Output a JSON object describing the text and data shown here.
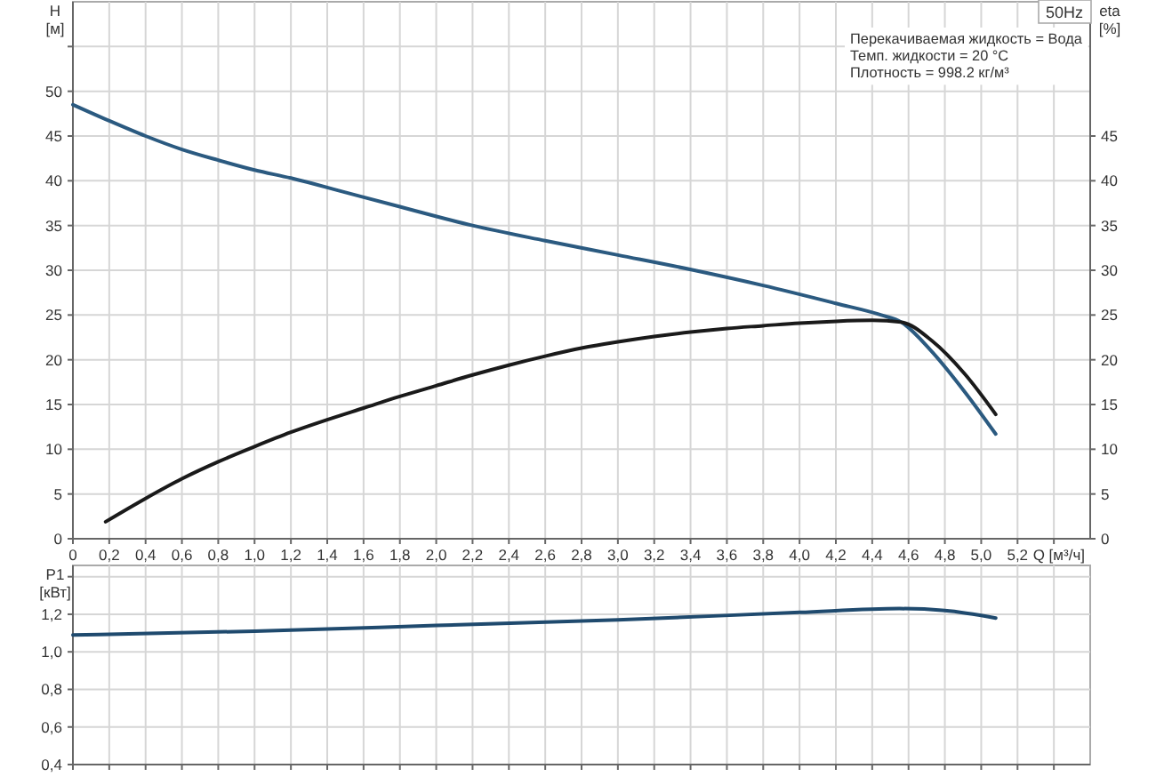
{
  "chart_data": [
    {
      "type": "line",
      "xlabel": "Q [м³/ч]",
      "ylabel": "H [м]",
      "y2label": "eta [%]",
      "xlim": [
        0,
        5.6
      ],
      "xticks": [
        0,
        {
          "value": 0.2,
          "label": "0,2"
        },
        {
          "value": 0.4,
          "label": "0,4"
        },
        {
          "value": 0.6,
          "label": "0,6"
        },
        {
          "value": 0.8,
          "label": "0,8"
        },
        {
          "value": 1.0,
          "label": "1,0"
        },
        {
          "value": 1.2,
          "label": "1,2"
        },
        {
          "value": 1.4,
          "label": "1,4"
        },
        {
          "value": 1.6,
          "label": "1,6"
        },
        {
          "value": 1.8,
          "label": "1,8"
        },
        {
          "value": 2.0,
          "label": "2,0"
        },
        {
          "value": 2.2,
          "label": "2,2"
        },
        {
          "value": 2.4,
          "label": "2,4"
        },
        {
          "value": 2.6,
          "label": "2,6"
        },
        {
          "value": 2.8,
          "label": "2,8"
        },
        {
          "value": 3.0,
          "label": "3,0"
        },
        {
          "value": 3.2,
          "label": "3,2"
        },
        {
          "value": 3.4,
          "label": "3,4"
        },
        {
          "value": 3.6,
          "label": "3,6"
        },
        {
          "value": 3.8,
          "label": "3,8"
        },
        {
          "value": 4.0,
          "label": "4,0"
        },
        {
          "value": 4.2,
          "label": "4,2"
        },
        {
          "value": 4.4,
          "label": "4,4"
        },
        {
          "value": 4.6,
          "label": "4,6"
        },
        {
          "value": 4.8,
          "label": "4,8"
        },
        {
          "value": 5.0,
          "label": "5,0"
        },
        {
          "value": 5.2,
          "label": "5,2"
        },
        {
          "value": 5.4,
          "label": null
        }
      ],
      "ylim": [
        0,
        60
      ],
      "yticks": [
        0,
        5,
        10,
        15,
        20,
        25,
        30,
        35,
        40,
        45,
        50,
        {
          "value": 55,
          "label": null
        }
      ],
      "y2lim": [
        0,
        60
      ],
      "y2ticks": [
        0,
        5,
        10,
        15,
        20,
        25,
        30,
        35,
        40,
        45
      ],
      "grid": true,
      "annotations": [
        "50Hz",
        "Перекачиваемая жидкость = Вода",
        "Темп. жидкости = 20 °C",
        "Плотность = 998.2 кг/м³"
      ],
      "series": [
        {
          "color": "#2b5a80",
          "x": [
            0,
            0.2,
            0.4,
            0.6,
            0.8,
            1.0,
            1.2,
            1.5,
            1.8,
            2.2,
            2.6,
            3.0,
            3.42,
            3.8,
            4.2,
            4.45,
            4.56,
            4.72,
            4.91,
            5.08
          ],
          "values": [
            48.5,
            46.7,
            45.0,
            43.5,
            42.3,
            41.2,
            40.3,
            38.7,
            37.1,
            35.0,
            33.3,
            31.7,
            30.0,
            28.3,
            26.3,
            25.0,
            24.2,
            21.1,
            16.4,
            11.7
          ]
        },
        {
          "color": "#1a1a1a",
          "x": [
            0.18,
            0.4,
            0.6,
            0.8,
            1.0,
            1.2,
            1.4,
            1.6,
            1.8,
            2.0,
            2.2,
            2.4,
            2.6,
            2.8,
            3.0,
            3.2,
            3.4,
            3.6,
            3.8,
            4.0,
            4.2,
            4.4,
            4.56,
            4.73,
            4.91,
            5.08
          ],
          "values": [
            1.9,
            4.5,
            6.7,
            8.6,
            10.3,
            11.9,
            13.3,
            14.6,
            15.9,
            17.1,
            18.3,
            19.4,
            20.4,
            21.3,
            22.0,
            22.6,
            23.1,
            23.5,
            23.8,
            24.1,
            24.3,
            24.4,
            24.2,
            22.1,
            18.4,
            13.9
          ]
        }
      ]
    },
    {
      "type": "line",
      "ylabel": "P1 [кВт]",
      "xlim": [
        0,
        5.6
      ],
      "xticks": [
        0,
        0.2,
        0.4,
        0.6,
        0.8,
        1.0,
        1.2,
        1.4,
        1.6,
        1.8,
        2.0,
        2.2,
        2.4,
        2.6,
        2.8,
        3.0,
        3.2,
        3.4,
        3.6,
        3.8,
        4.0,
        4.2,
        4.4,
        4.6,
        4.8,
        5.0,
        5.2,
        5.4
      ],
      "ylim": [
        0.4,
        1.46
      ],
      "yticks": [
        {
          "value": 0.4,
          "label": "0,4"
        },
        {
          "value": 0.6,
          "label": "0,6"
        },
        {
          "value": 0.8,
          "label": "0,8"
        },
        {
          "value": 1.0,
          "label": "1,0"
        },
        {
          "value": 1.2,
          "label": "1,2"
        },
        {
          "value": 1.4,
          "label": null
        }
      ],
      "tick_labels": "y",
      "grid": true,
      "series": [
        {
          "color": "#1f4a6e",
          "x": [
            0,
            1.0,
            2.0,
            3.0,
            4.0,
            4.55,
            4.8,
            5.08
          ],
          "values": [
            1.09,
            1.11,
            1.14,
            1.17,
            1.21,
            1.23,
            1.22,
            1.18
          ]
        }
      ]
    }
  ]
}
